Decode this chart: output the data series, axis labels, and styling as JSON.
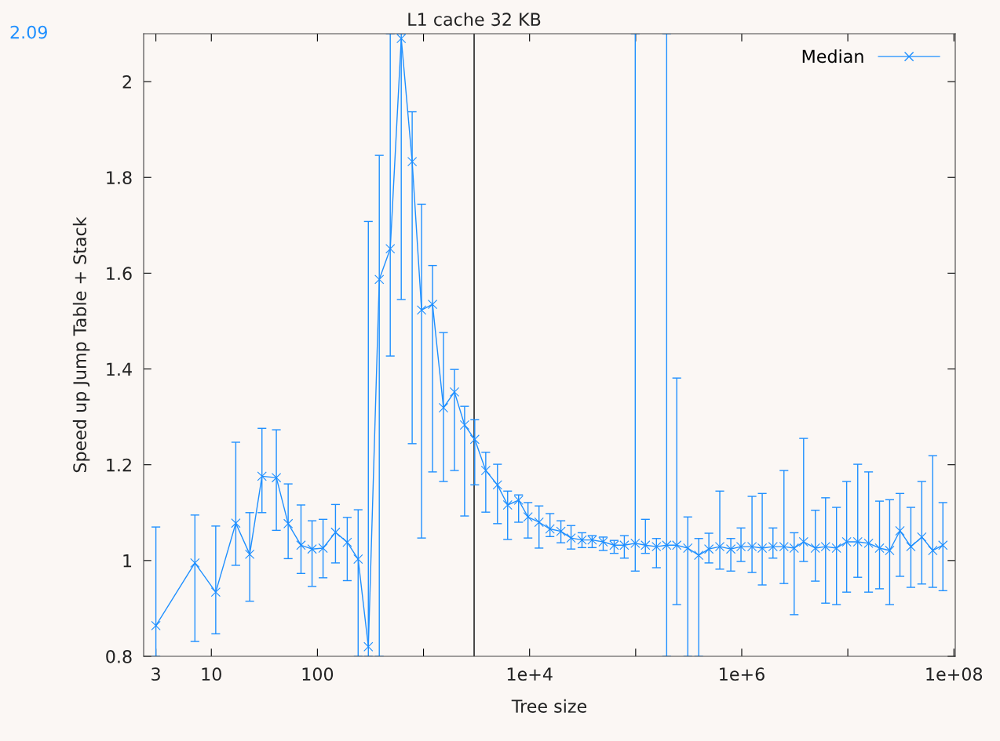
{
  "chart_data": {
    "type": "line",
    "xlabel": "Tree size",
    "ylabel": "Speed up Jump Table + Stack",
    "log": "x",
    "xlim": [
      2.3,
      103000000
    ],
    "ylim": [
      0.8,
      2.1
    ],
    "xticks": [
      3,
      10,
      100,
      {
        "value": 1000,
        "label": null
      },
      {
        "value": 10000,
        "label": "1e+4"
      },
      {
        "value": 100000,
        "label": null
      },
      {
        "value": 1000000,
        "label": "1e+6"
      },
      {
        "value": 10000000,
        "label": null
      },
      {
        "value": 100000000,
        "label": "1e+08"
      }
    ],
    "yticks": [
      0.8,
      1,
      1.2,
      1.4,
      1.6,
      1.8,
      2
    ],
    "grid": false,
    "legend": "top right",
    "marker": "cross",
    "line_style": "solid",
    "ref_lines": [
      {
        "axis": "x",
        "value": 3000,
        "label": "L1 cache 32 KB",
        "color": "#000000"
      }
    ],
    "annotations": [
      "2.09"
    ],
    "series": [
      {
        "name": "Median",
        "color": "#1e8fff",
        "x": [
          3,
          7,
          11,
          17,
          23,
          30,
          41,
          53,
          70,
          89,
          113,
          148,
          191,
          242,
          302,
          383,
          486,
          617,
          782,
          959,
          1217,
          1542,
          1958,
          2440,
          3041,
          3862,
          4980,
          6210,
          7880,
          9660,
          12270,
          15570,
          19730,
          24600,
          31200,
          38900,
          49400,
          62700,
          78200,
          99100,
          123600,
          157000,
          196000,
          244000,
          310000,
          393000,
          490000,
          621000,
          789000,
          984000,
          1250000,
          1560000,
          1970000,
          2500000,
          3120000,
          3830000,
          4940000,
          6170000,
          7820000,
          9750000,
          12400000,
          15700000,
          19900000,
          24800000,
          31000000,
          39300000,
          49800000,
          63200000,
          78800000
        ],
        "values": [
          0.864,
          0.995,
          0.934,
          1.078,
          1.013,
          1.176,
          1.173,
          1.077,
          1.032,
          1.024,
          1.026,
          1.059,
          1.038,
          1.003,
          0.82,
          1.587,
          1.651,
          2.09,
          1.833,
          1.523,
          1.535,
          1.319,
          1.352,
          1.283,
          1.253,
          1.188,
          1.158,
          1.116,
          1.126,
          1.091,
          1.08,
          1.066,
          1.061,
          1.047,
          1.043,
          1.043,
          1.039,
          1.032,
          1.032,
          1.036,
          1.032,
          1.029,
          1.032,
          1.032,
          1.026,
          1.011,
          1.024,
          1.029,
          1.024,
          1.029,
          1.029,
          1.026,
          1.029,
          1.029,
          1.026,
          1.039,
          1.026,
          1.029,
          1.026,
          1.039,
          1.039,
          1.036,
          1.026,
          1.021,
          1.062,
          1.029,
          1.049,
          1.021,
          1.032
        ],
        "errors": [
          [
            0.8,
            1.07
          ],
          [
            0.831,
            1.095
          ],
          [
            0.847,
            1.072
          ],
          [
            0.99,
            1.247
          ],
          [
            0.915,
            1.1
          ],
          [
            1.1,
            1.276
          ],
          [
            1.063,
            1.273
          ],
          [
            1.004,
            1.16
          ],
          [
            0.973,
            1.116
          ],
          [
            0.946,
            1.083
          ],
          [
            0.964,
            1.086
          ],
          [
            0.995,
            1.117
          ],
          [
            0.958,
            1.09
          ],
          [
            0.8,
            1.106
          ],
          [
            0.8,
            1.708
          ],
          [
            0.8,
            1.846
          ],
          [
            1.427,
            2.1
          ],
          [
            1.545,
            2.1
          ],
          [
            1.244,
            1.937
          ],
          [
            1.047,
            1.744
          ],
          [
            1.185,
            1.616
          ],
          [
            1.165,
            1.476
          ],
          [
            1.188,
            1.399
          ],
          [
            1.093,
            1.322
          ],
          [
            1.158,
            1.294
          ],
          [
            1.101,
            1.226
          ],
          [
            1.077,
            1.201
          ],
          [
            1.044,
            1.145
          ],
          [
            1.08,
            1.137
          ],
          [
            1.047,
            1.121
          ],
          [
            1.026,
            1.114
          ],
          [
            1.05,
            1.098
          ],
          [
            1.037,
            1.083
          ],
          [
            1.024,
            1.073
          ],
          [
            1.027,
            1.058
          ],
          [
            1.027,
            1.052
          ],
          [
            1.021,
            1.049
          ],
          [
            1.015,
            1.042
          ],
          [
            1.005,
            1.052
          ],
          [
            0.978,
            2.1
          ],
          [
            1.015,
            1.086
          ],
          [
            0.985,
            1.046
          ],
          [
            0.8,
            2.1
          ],
          [
            0.908,
            1.381
          ],
          [
            0.8,
            1.091
          ],
          [
            0.8,
            1.046
          ],
          [
            0.995,
            1.057
          ],
          [
            0.982,
            1.145
          ],
          [
            0.978,
            1.046
          ],
          [
            0.998,
            1.068
          ],
          [
            0.975,
            1.134
          ],
          [
            0.949,
            1.14
          ],
          [
            1.005,
            1.068
          ],
          [
            0.952,
            1.188
          ],
          [
            0.887,
            1.058
          ],
          [
            0.998,
            1.255
          ],
          [
            0.957,
            1.105
          ],
          [
            0.911,
            1.131
          ],
          [
            0.908,
            1.111
          ],
          [
            0.934,
            1.165
          ],
          [
            0.965,
            1.201
          ],
          [
            0.934,
            1.185
          ],
          [
            0.941,
            1.124
          ],
          [
            0.908,
            1.127
          ],
          [
            0.967,
            1.14
          ],
          [
            0.944,
            1.111
          ],
          [
            0.951,
            1.165
          ],
          [
            0.944,
            1.219
          ],
          [
            0.937,
            1.121
          ]
        ]
      }
    ]
  }
}
